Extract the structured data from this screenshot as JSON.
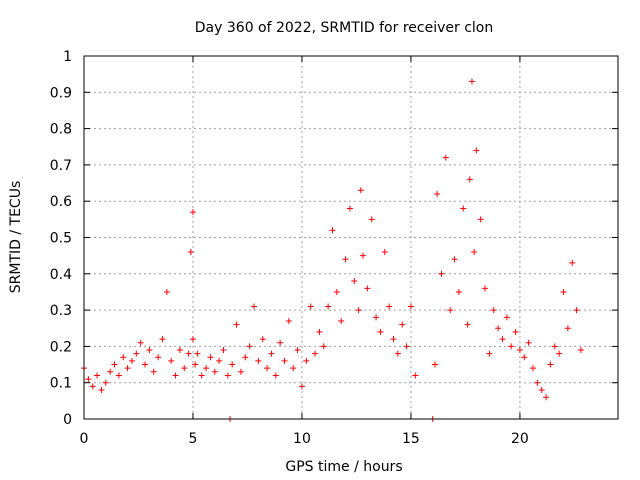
{
  "chart_data": {
    "type": "scatter",
    "title": "Day 360 of 2022, SRMTID for receiver clon",
    "xlabel": "GPS time / hours",
    "ylabel": "SRMTID / TECUs",
    "xlim": [
      0,
      24.5
    ],
    "ylim": [
      0,
      1
    ],
    "xticks": [
      0,
      5,
      10,
      15,
      20
    ],
    "xtick_labels": [
      "0",
      "5",
      "10",
      "15",
      "20"
    ],
    "yticks": [
      0,
      0.1,
      0.2,
      0.3,
      0.4,
      0.5,
      0.6,
      0.7,
      0.8,
      0.9,
      1
    ],
    "ytick_labels": [
      "0",
      "0.1",
      "0.2",
      "0.3",
      "0.4",
      "0.5",
      "0.6",
      "0.7",
      "0.8",
      "0.9",
      "1"
    ],
    "grid": true,
    "marker": "+",
    "color": "#ff0000",
    "series": [
      {
        "name": "clon",
        "x": [
          0.0,
          0.2,
          0.4,
          0.6,
          0.8,
          1.0,
          1.2,
          1.4,
          1.6,
          1.8,
          2.0,
          2.2,
          2.4,
          2.6,
          2.8,
          3.0,
          3.2,
          3.4,
          3.6,
          3.8,
          4.0,
          4.2,
          4.4,
          4.6,
          4.8,
          4.9,
          5.0,
          5.0,
          5.1,
          5.2,
          5.4,
          5.6,
          5.8,
          6.0,
          6.2,
          6.4,
          6.6,
          6.7,
          6.8,
          7.0,
          7.2,
          7.4,
          7.6,
          7.8,
          8.0,
          8.2,
          8.4,
          8.6,
          8.8,
          9.0,
          9.2,
          9.4,
          9.6,
          9.8,
          10.0,
          10.2,
          10.4,
          10.6,
          10.8,
          11.0,
          11.2,
          11.4,
          11.6,
          11.8,
          12.0,
          12.2,
          12.4,
          12.6,
          12.7,
          12.8,
          13.0,
          13.2,
          13.4,
          13.6,
          13.8,
          14.0,
          14.2,
          14.4,
          14.6,
          14.8,
          15.0,
          15.2,
          16.0,
          16.1,
          16.2,
          16.4,
          16.6,
          16.8,
          17.0,
          17.2,
          17.4,
          17.6,
          17.7,
          17.8,
          17.9,
          18.0,
          18.2,
          18.4,
          18.6,
          18.8,
          19.0,
          19.2,
          19.4,
          19.6,
          19.8,
          20.0,
          20.2,
          20.4,
          20.6,
          20.8,
          21.0,
          21.2,
          21.4,
          21.6,
          21.8,
          22.0,
          22.2,
          22.4,
          22.6,
          22.8
        ],
        "y": [
          0.14,
          0.11,
          0.09,
          0.12,
          0.08,
          0.1,
          0.13,
          0.15,
          0.12,
          0.17,
          0.14,
          0.16,
          0.18,
          0.21,
          0.15,
          0.19,
          0.13,
          0.17,
          0.22,
          0.35,
          0.16,
          0.12,
          0.19,
          0.14,
          0.18,
          0.46,
          0.57,
          0.22,
          0.15,
          0.18,
          0.12,
          0.14,
          0.17,
          0.13,
          0.16,
          0.19,
          0.12,
          0.0,
          0.15,
          0.26,
          0.13,
          0.17,
          0.2,
          0.31,
          0.16,
          0.22,
          0.14,
          0.18,
          0.12,
          0.21,
          0.16,
          0.27,
          0.14,
          0.19,
          0.09,
          0.16,
          0.31,
          0.18,
          0.24,
          0.2,
          0.31,
          0.52,
          0.35,
          0.27,
          0.44,
          0.58,
          0.38,
          0.3,
          0.63,
          0.45,
          0.36,
          0.55,
          0.28,
          0.24,
          0.46,
          0.31,
          0.22,
          0.18,
          0.26,
          0.2,
          0.31,
          0.12,
          0.0,
          0.15,
          0.62,
          0.4,
          0.72,
          0.3,
          0.44,
          0.35,
          0.58,
          0.26,
          0.66,
          0.93,
          0.46,
          0.74,
          0.55,
          0.36,
          0.18,
          0.3,
          0.25,
          0.22,
          0.28,
          0.2,
          0.24,
          0.19,
          0.17,
          0.21,
          0.14,
          0.1,
          0.08,
          0.06,
          0.15,
          0.2,
          0.18,
          0.35,
          0.25,
          0.43,
          0.3,
          0.19
        ]
      }
    ]
  }
}
